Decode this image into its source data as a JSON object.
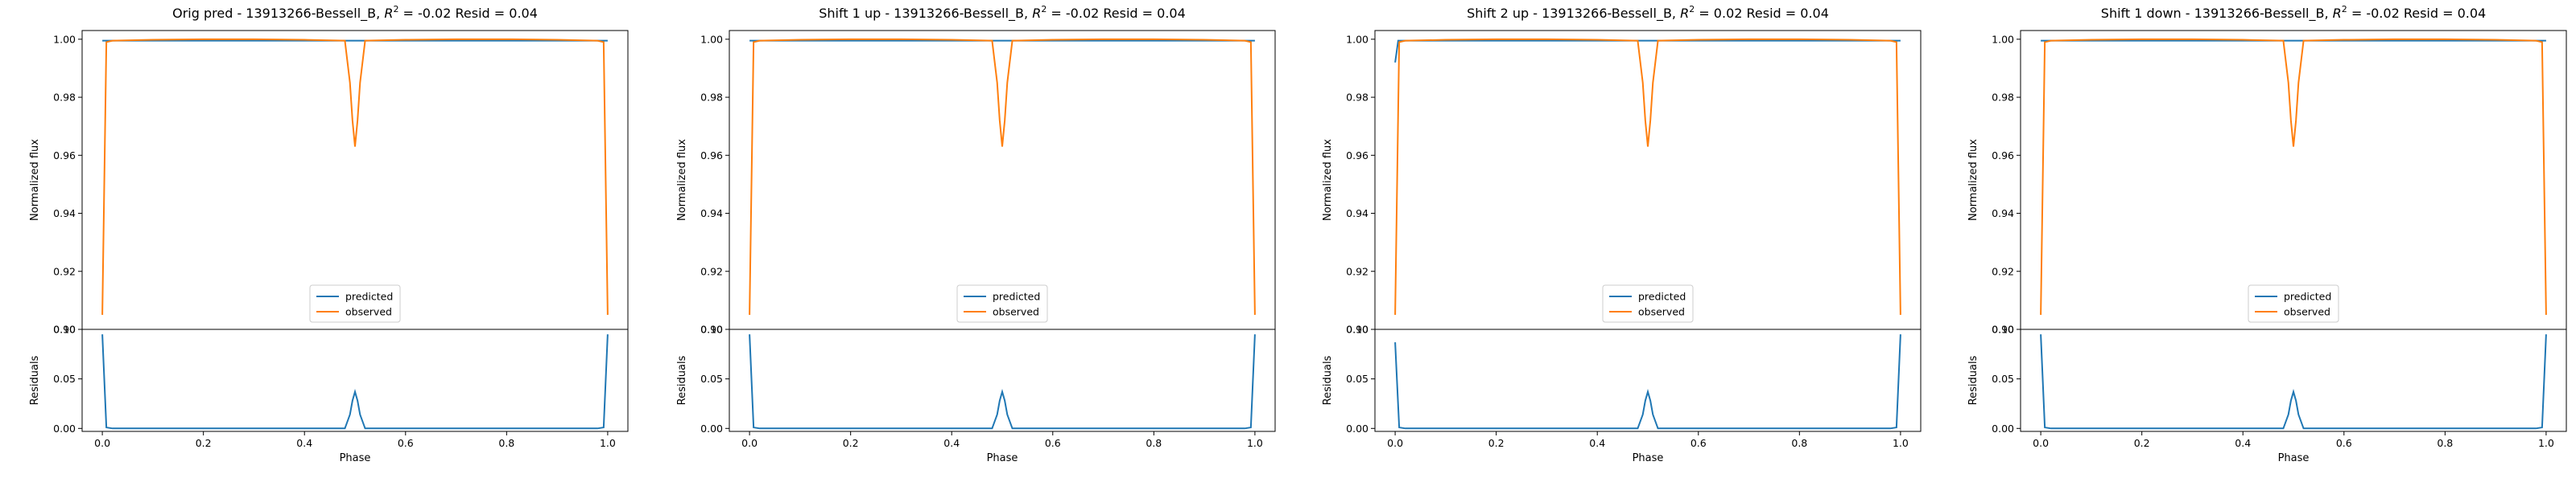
{
  "figure": {
    "panels": [
      {
        "title": "Orig pred - 13913266-Bessell_B, $R^2 = $-0.02 Resid = 0.04",
        "title_prefix": "Orig pred - 13913266-Bessell_B, ",
        "title_r2": "R",
        "title_r2_sup": "2",
        "title_suffix": " = -0.02 Resid = 0.04"
      },
      {
        "title": "Shift 1 up - 13913266-Bessell_B, $R^2 = $-0.02 Resid = 0.04",
        "title_prefix": "Shift 1 up - 13913266-Bessell_B, ",
        "title_r2": "R",
        "title_r2_sup": "2",
        "title_suffix": " = -0.02 Resid = 0.04"
      },
      {
        "title": "Shift 2 up - 13913266-Bessell_B, $R^2 = $0.02 Resid = 0.04",
        "title_prefix": "Shift 2 up - 13913266-Bessell_B, ",
        "title_r2": "R",
        "title_r2_sup": "2",
        "title_suffix": " = 0.02 Resid = 0.04"
      },
      {
        "title": "Shift 1 down - 13913266-Bessell_B, $R^2 = $-0.02 Resid = 0.04",
        "title_prefix": "Shift 1 down - 13913266-Bessell_B, ",
        "title_r2": "R",
        "title_r2_sup": "2",
        "title_suffix": " = -0.02 Resid = 0.04"
      }
    ],
    "colors": {
      "predicted": "#1f77b4",
      "observed": "#ff7f0e"
    }
  },
  "chart_data": [
    {
      "type": "line",
      "panel": "Orig pred",
      "xlabel": "Phase",
      "ylabel_top": "Normalized flux",
      "ylabel_bottom": "Residuals",
      "xlim": [
        -0.04,
        1.04
      ],
      "ylim_top": [
        0.9,
        1.003
      ],
      "ylim_bottom": [
        -0.003,
        0.1
      ],
      "x_ticks": [
        "0.0",
        "0.2",
        "0.4",
        "0.6",
        "0.8",
        "1.0"
      ],
      "y_ticks_top": [
        "0.90",
        "0.92",
        "0.94",
        "0.96",
        "0.98",
        "1.00"
      ],
      "y_ticks_bottom": [
        "0.00",
        "0.05",
        "0.10"
      ],
      "legend": [
        "predicted",
        "observed"
      ],
      "legend_position": "lower center",
      "series": [
        {
          "name": "predicted",
          "x": [
            0.0,
            0.01,
            0.1,
            0.2,
            0.3,
            0.4,
            0.48,
            0.49,
            0.5,
            0.51,
            0.52,
            0.6,
            0.7,
            0.8,
            0.9,
            0.99,
            1.0
          ],
          "y": [
            0.9995,
            0.9995,
            0.9995,
            0.9995,
            0.9995,
            0.9995,
            0.9995,
            0.9995,
            0.9995,
            0.9995,
            0.9995,
            0.9995,
            0.9995,
            0.9995,
            0.9995,
            0.9995,
            0.9995
          ]
        },
        {
          "name": "observed",
          "x": [
            0.0,
            0.008,
            0.02,
            0.1,
            0.2,
            0.3,
            0.4,
            0.48,
            0.49,
            0.495,
            0.5,
            0.505,
            0.51,
            0.52,
            0.6,
            0.7,
            0.8,
            0.9,
            0.98,
            0.992,
            1.0
          ],
          "y": [
            0.905,
            0.999,
            0.9995,
            0.9998,
            1.0,
            1.0,
            0.9998,
            0.9995,
            0.985,
            0.972,
            0.963,
            0.972,
            0.985,
            0.9995,
            0.9998,
            1.0,
            1.0,
            0.9998,
            0.9995,
            0.999,
            0.905
          ]
        },
        {
          "name": "residual",
          "x": [
            0.0,
            0.008,
            0.02,
            0.1,
            0.2,
            0.3,
            0.4,
            0.48,
            0.49,
            0.495,
            0.5,
            0.505,
            0.51,
            0.52,
            0.6,
            0.7,
            0.8,
            0.9,
            0.98,
            0.992,
            1.0
          ],
          "y": [
            0.095,
            0.001,
            0.0,
            0.0,
            0.0,
            0.0,
            0.0,
            0.0,
            0.014,
            0.028,
            0.037,
            0.028,
            0.014,
            0.0,
            0.0,
            0.0,
            0.0,
            0.0,
            0.0,
            0.001,
            0.095
          ]
        }
      ]
    },
    {
      "type": "line",
      "panel": "Shift 1 up",
      "xlabel": "Phase",
      "ylabel_top": "Normalized flux",
      "ylabel_bottom": "Residuals",
      "xlim": [
        -0.04,
        1.04
      ],
      "ylim_top": [
        0.9,
        1.003
      ],
      "ylim_bottom": [
        -0.003,
        0.1
      ],
      "x_ticks": [
        "0.0",
        "0.2",
        "0.4",
        "0.6",
        "0.8",
        "1.0"
      ],
      "y_ticks_top": [
        "0.90",
        "0.92",
        "0.94",
        "0.96",
        "0.98",
        "1.00"
      ],
      "y_ticks_bottom": [
        "0.00",
        "0.05",
        "0.10"
      ],
      "legend": [
        "predicted",
        "observed"
      ],
      "legend_position": "lower center",
      "series": [
        {
          "name": "predicted",
          "x": [
            0.0,
            0.1,
            0.2,
            0.3,
            0.4,
            0.5,
            0.6,
            0.7,
            0.8,
            0.9,
            1.0
          ],
          "y": [
            0.9995,
            0.9995,
            0.9995,
            0.9995,
            0.9995,
            0.9995,
            0.9995,
            0.9995,
            0.9995,
            0.9995,
            0.9995
          ]
        },
        {
          "name": "observed",
          "x": [
            0.0,
            0.008,
            0.02,
            0.1,
            0.2,
            0.3,
            0.4,
            0.48,
            0.49,
            0.495,
            0.5,
            0.505,
            0.51,
            0.52,
            0.6,
            0.7,
            0.8,
            0.9,
            0.98,
            0.992,
            1.0
          ],
          "y": [
            0.905,
            0.999,
            0.9995,
            0.9998,
            1.0,
            1.0,
            0.9998,
            0.9995,
            0.985,
            0.972,
            0.963,
            0.972,
            0.985,
            0.9995,
            0.9998,
            1.0,
            1.0,
            0.9998,
            0.9995,
            0.999,
            0.905
          ]
        },
        {
          "name": "residual",
          "x": [
            0.0,
            0.008,
            0.02,
            0.1,
            0.2,
            0.3,
            0.4,
            0.48,
            0.49,
            0.495,
            0.5,
            0.505,
            0.51,
            0.52,
            0.6,
            0.7,
            0.8,
            0.9,
            0.98,
            0.992,
            1.0
          ],
          "y": [
            0.095,
            0.001,
            0.0,
            0.0,
            0.0,
            0.0,
            0.0,
            0.0,
            0.014,
            0.028,
            0.037,
            0.028,
            0.014,
            0.0,
            0.0,
            0.0,
            0.0,
            0.0,
            0.0,
            0.001,
            0.095
          ]
        }
      ]
    },
    {
      "type": "line",
      "panel": "Shift 2 up",
      "xlabel": "Phase",
      "ylabel_top": "Normalized flux",
      "ylabel_bottom": "Residuals",
      "xlim": [
        -0.04,
        1.04
      ],
      "ylim_top": [
        0.9,
        1.003
      ],
      "ylim_bottom": [
        -0.003,
        0.1
      ],
      "x_ticks": [
        "0.0",
        "0.2",
        "0.4",
        "0.6",
        "0.8",
        "1.0"
      ],
      "y_ticks_top": [
        "0.90",
        "0.92",
        "0.94",
        "0.96",
        "0.98",
        "1.00"
      ],
      "y_ticks_bottom": [
        "0.00",
        "0.05",
        "0.10"
      ],
      "legend": [
        "predicted",
        "observed"
      ],
      "legend_position": "lower center",
      "series": [
        {
          "name": "predicted",
          "x": [
            0.0,
            0.006,
            0.012,
            0.1,
            0.2,
            0.3,
            0.4,
            0.5,
            0.6,
            0.7,
            0.8,
            0.9,
            1.0
          ],
          "y": [
            0.992,
            0.9995,
            0.9995,
            0.9995,
            0.9995,
            0.9995,
            0.9995,
            0.9995,
            0.9995,
            0.9995,
            0.9995,
            0.9995,
            0.9995
          ]
        },
        {
          "name": "observed",
          "x": [
            0.0,
            0.008,
            0.02,
            0.1,
            0.2,
            0.3,
            0.4,
            0.48,
            0.49,
            0.495,
            0.5,
            0.505,
            0.51,
            0.52,
            0.6,
            0.7,
            0.8,
            0.9,
            0.98,
            0.992,
            1.0
          ],
          "y": [
            0.905,
            0.999,
            0.9995,
            0.9998,
            1.0,
            1.0,
            0.9998,
            0.9995,
            0.985,
            0.972,
            0.963,
            0.972,
            0.985,
            0.9995,
            0.9998,
            1.0,
            1.0,
            0.9998,
            0.9995,
            0.999,
            0.905
          ]
        },
        {
          "name": "residual",
          "x": [
            0.0,
            0.008,
            0.02,
            0.1,
            0.2,
            0.3,
            0.4,
            0.48,
            0.49,
            0.495,
            0.5,
            0.505,
            0.51,
            0.52,
            0.6,
            0.7,
            0.8,
            0.9,
            0.98,
            0.992,
            1.0
          ],
          "y": [
            0.087,
            0.001,
            0.0,
            0.0,
            0.0,
            0.0,
            0.0,
            0.0,
            0.014,
            0.028,
            0.037,
            0.028,
            0.014,
            0.0,
            0.0,
            0.0,
            0.0,
            0.0,
            0.0,
            0.001,
            0.095
          ]
        }
      ]
    },
    {
      "type": "line",
      "panel": "Shift 1 down",
      "xlabel": "Phase",
      "ylabel_top": "Normalized flux",
      "ylabel_bottom": "Residuals",
      "xlim": [
        -0.04,
        1.04
      ],
      "ylim_top": [
        0.9,
        1.003
      ],
      "ylim_bottom": [
        -0.003,
        0.1
      ],
      "x_ticks": [
        "0.0",
        "0.2",
        "0.4",
        "0.6",
        "0.8",
        "1.0"
      ],
      "y_ticks_top": [
        "0.90",
        "0.92",
        "0.94",
        "0.96",
        "0.98",
        "1.00"
      ],
      "y_ticks_bottom": [
        "0.00",
        "0.05",
        "0.10"
      ],
      "legend": [
        "predicted",
        "observed"
      ],
      "legend_position": "lower center",
      "series": [
        {
          "name": "predicted",
          "x": [
            0.0,
            0.1,
            0.2,
            0.3,
            0.4,
            0.5,
            0.6,
            0.7,
            0.8,
            0.9,
            1.0
          ],
          "y": [
            0.9995,
            0.9995,
            0.9995,
            0.9995,
            0.9995,
            0.9995,
            0.9995,
            0.9995,
            0.9995,
            0.9995,
            0.9995
          ]
        },
        {
          "name": "observed",
          "x": [
            0.0,
            0.008,
            0.02,
            0.1,
            0.2,
            0.3,
            0.4,
            0.48,
            0.49,
            0.495,
            0.5,
            0.505,
            0.51,
            0.52,
            0.6,
            0.7,
            0.8,
            0.9,
            0.98,
            0.992,
            1.0
          ],
          "y": [
            0.905,
            0.999,
            0.9995,
            0.9998,
            1.0,
            1.0,
            0.9998,
            0.9995,
            0.985,
            0.972,
            0.963,
            0.972,
            0.985,
            0.9995,
            0.9998,
            1.0,
            1.0,
            0.9998,
            0.9995,
            0.999,
            0.905
          ]
        },
        {
          "name": "residual",
          "x": [
            0.0,
            0.008,
            0.02,
            0.1,
            0.2,
            0.3,
            0.4,
            0.48,
            0.49,
            0.495,
            0.5,
            0.505,
            0.51,
            0.52,
            0.6,
            0.7,
            0.8,
            0.9,
            0.98,
            0.992,
            1.0
          ],
          "y": [
            0.095,
            0.001,
            0.0,
            0.0,
            0.0,
            0.0,
            0.0,
            0.0,
            0.014,
            0.028,
            0.037,
            0.028,
            0.014,
            0.0,
            0.0,
            0.0,
            0.0,
            0.0,
            0.0,
            0.001,
            0.095
          ]
        }
      ]
    }
  ]
}
